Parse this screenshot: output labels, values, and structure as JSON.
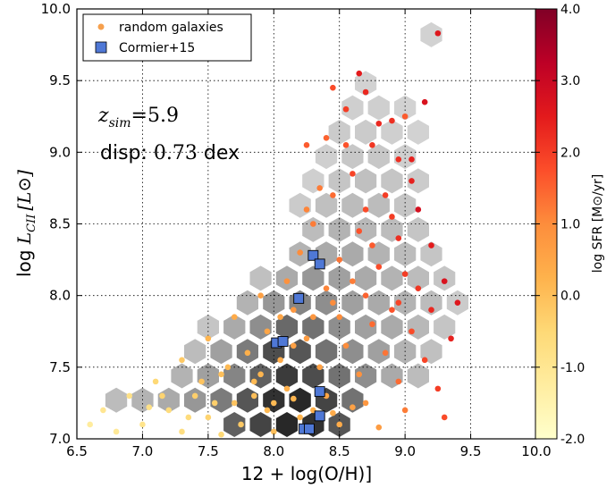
{
  "chart_data": {
    "type": "scatter",
    "title": "",
    "xlabel": "12 + log(O/H)]",
    "ylabel_prefix": "log ",
    "ylabel_math": "L",
    "ylabel_sub": "CII",
    "ylabel_unit": "[L⊙]",
    "xlim": [
      6.5,
      10.0
    ],
    "ylim": [
      7.0,
      10.0
    ],
    "xticks": [
      "6.5",
      "7.0",
      "7.5",
      "8.0",
      "8.5",
      "9.0",
      "9.5",
      "10.0"
    ],
    "yticks": [
      "7.0",
      "7.5",
      "8.0",
      "8.5",
      "9.0",
      "9.5",
      "10.0"
    ],
    "grid": true,
    "legend": {
      "placement": "top-left",
      "entries": [
        {
          "label": "random galaxies",
          "marker": "circle",
          "color": "#f6a04d"
        },
        {
          "label": "Cormier+15",
          "marker": "square",
          "color": "#4f78d6"
        }
      ]
    },
    "annotations": {
      "z_label": "z",
      "z_sub": "sim",
      "z_value": "=5.9",
      "disp_prefix": "disp: ",
      "disp_value": "0.73",
      "disp_suffix": " dex"
    },
    "colorbar": {
      "label": "log SFR [M⊙/yr]",
      "range": [
        -2.0,
        4.0
      ],
      "ticks": [
        "4.0",
        "3.0",
        "2.0",
        "1.0",
        "0.0",
        "-1.0",
        "-2.0"
      ],
      "colors": [
        "#ffffcc",
        "#ffeda0",
        "#fed976",
        "#feb24c",
        "#fd8d3c",
        "#fc4e2a",
        "#e31a1c",
        "#bd0026",
        "#800026"
      ]
    },
    "series": [
      {
        "name": "Cormier+15",
        "x": [
          8.3,
          8.35,
          8.19,
          8.02,
          8.07,
          8.35,
          8.35,
          8.23,
          8.27
        ],
        "y": [
          8.28,
          8.22,
          7.98,
          7.67,
          7.68,
          7.33,
          7.16,
          7.07,
          7.07
        ]
      },
      {
        "name": "random galaxies",
        "points": [
          [
            9.25,
            9.83,
            2.6
          ],
          [
            8.7,
            9.42,
            2.3
          ],
          [
            8.55,
            9.3,
            2.0
          ],
          [
            8.9,
            9.22,
            2.2
          ],
          [
            9.0,
            9.25,
            1.6
          ],
          [
            8.4,
            9.1,
            1.5
          ],
          [
            8.75,
            9.05,
            2.1
          ],
          [
            9.05,
            8.95,
            2.4
          ],
          [
            8.6,
            8.85,
            1.9
          ],
          [
            8.45,
            8.7,
            1.4
          ],
          [
            8.85,
            8.7,
            2.0
          ],
          [
            9.1,
            8.6,
            2.8
          ],
          [
            8.3,
            8.5,
            1.2
          ],
          [
            8.65,
            8.45,
            1.7
          ],
          [
            8.95,
            8.4,
            2.2
          ],
          [
            9.2,
            8.35,
            2.5
          ],
          [
            8.2,
            8.3,
            1.0
          ],
          [
            8.5,
            8.25,
            1.3
          ],
          [
            8.8,
            8.2,
            1.8
          ],
          [
            9.0,
            8.15,
            2.0
          ],
          [
            9.3,
            8.1,
            2.7
          ],
          [
            8.1,
            8.1,
            0.9
          ],
          [
            8.4,
            8.05,
            1.1
          ],
          [
            8.7,
            8.0,
            1.5
          ],
          [
            8.95,
            7.95,
            1.9
          ],
          [
            9.2,
            7.9,
            2.3
          ],
          [
            7.9,
            8.0,
            0.6
          ],
          [
            8.15,
            7.9,
            0.8
          ],
          [
            8.5,
            7.85,
            1.0
          ],
          [
            8.75,
            7.8,
            1.4
          ],
          [
            9.05,
            7.75,
            1.8
          ],
          [
            9.35,
            7.7,
            2.4
          ],
          [
            7.7,
            7.85,
            0.4
          ],
          [
            7.95,
            7.75,
            0.5
          ],
          [
            8.25,
            7.7,
            0.7
          ],
          [
            8.55,
            7.65,
            1.0
          ],
          [
            8.85,
            7.6,
            1.3
          ],
          [
            9.15,
            7.55,
            1.9
          ],
          [
            7.5,
            7.7,
            0.2
          ],
          [
            7.8,
            7.6,
            0.3
          ],
          [
            8.05,
            7.55,
            0.4
          ],
          [
            8.35,
            7.5,
            0.6
          ],
          [
            8.65,
            7.45,
            0.9
          ],
          [
            8.95,
            7.4,
            1.4
          ],
          [
            9.25,
            7.35,
            2.0
          ],
          [
            7.3,
            7.55,
            -0.2
          ],
          [
            7.6,
            7.45,
            0.0
          ],
          [
            7.85,
            7.4,
            0.1
          ],
          [
            8.1,
            7.35,
            0.3
          ],
          [
            8.4,
            7.3,
            0.5
          ],
          [
            8.7,
            7.25,
            0.8
          ],
          [
            9.0,
            7.2,
            1.2
          ],
          [
            9.3,
            7.15,
            1.8
          ],
          [
            7.1,
            7.4,
            -0.5
          ],
          [
            7.4,
            7.3,
            -0.3
          ],
          [
            7.7,
            7.25,
            -0.1
          ],
          [
            7.95,
            7.2,
            0.1
          ],
          [
            8.2,
            7.15,
            0.2
          ],
          [
            8.5,
            7.1,
            0.4
          ],
          [
            8.8,
            7.08,
            0.7
          ],
          [
            6.9,
            7.3,
            -0.8
          ],
          [
            7.2,
            7.2,
            -0.6
          ],
          [
            7.5,
            7.15,
            -0.4
          ],
          [
            7.75,
            7.1,
            -0.2
          ],
          [
            8.0,
            7.05,
            0.0
          ],
          [
            6.7,
            7.2,
            -1.0
          ],
          [
            7.0,
            7.1,
            -0.9
          ],
          [
            7.3,
            7.05,
            -0.7
          ],
          [
            7.6,
            7.03,
            -0.5
          ],
          [
            6.6,
            7.1,
            -1.2
          ],
          [
            6.8,
            7.05,
            -1.1
          ],
          [
            7.15,
            7.3,
            -0.4
          ],
          [
            7.45,
            7.4,
            -0.1
          ],
          [
            7.65,
            7.5,
            0.1
          ],
          [
            7.9,
            7.45,
            0.2
          ],
          [
            8.15,
            7.65,
            0.6
          ],
          [
            8.3,
            7.85,
            0.8
          ],
          [
            8.45,
            7.95,
            1.0
          ],
          [
            8.6,
            8.1,
            1.2
          ],
          [
            8.75,
            8.35,
            1.6
          ],
          [
            8.9,
            8.55,
            2.0
          ],
          [
            9.05,
            8.8,
            2.4
          ],
          [
            8.55,
            9.05,
            1.7
          ],
          [
            8.35,
            8.75,
            1.2
          ],
          [
            8.25,
            8.6,
            1.1
          ],
          [
            8.05,
            7.85,
            0.5
          ],
          [
            7.85,
            7.3,
            0.0
          ],
          [
            8.0,
            7.25,
            0.1
          ],
          [
            8.15,
            7.28,
            0.2
          ],
          [
            8.3,
            7.2,
            0.3
          ],
          [
            8.45,
            7.18,
            0.4
          ],
          [
            8.6,
            7.22,
            0.6
          ],
          [
            7.55,
            7.25,
            -0.3
          ],
          [
            7.35,
            7.15,
            -0.6
          ],
          [
            7.05,
            7.22,
            -0.8
          ],
          [
            8.9,
            7.9,
            1.7
          ],
          [
            9.1,
            8.05,
            2.1
          ],
          [
            9.4,
            7.95,
            2.6
          ],
          [
            8.8,
            9.2,
            2.3
          ],
          [
            8.65,
            9.55,
            2.5
          ],
          [
            8.45,
            9.45,
            1.8
          ],
          [
            8.25,
            9.05,
            1.6
          ],
          [
            9.15,
            9.35,
            2.7
          ],
          [
            8.95,
            8.95,
            2.2
          ],
          [
            8.7,
            8.6,
            1.8
          ]
        ]
      }
    ],
    "hexbins": [
      [
        8.1,
        7.1,
        1.0
      ],
      [
        8.3,
        7.1,
        0.95
      ],
      [
        7.9,
        7.1,
        0.85
      ],
      [
        8.5,
        7.1,
        0.75
      ],
      [
        7.7,
        7.1,
        0.7
      ],
      [
        8.0,
        7.27,
        0.95
      ],
      [
        8.2,
        7.27,
        1.0
      ],
      [
        8.4,
        7.27,
        0.85
      ],
      [
        7.8,
        7.27,
        0.75
      ],
      [
        8.6,
        7.27,
        0.6
      ],
      [
        7.6,
        7.27,
        0.55
      ],
      [
        7.4,
        7.27,
        0.4
      ],
      [
        7.2,
        7.27,
        0.3
      ],
      [
        7.0,
        7.27,
        0.25
      ],
      [
        6.8,
        7.27,
        0.2
      ],
      [
        8.1,
        7.44,
        0.9
      ],
      [
        8.3,
        7.44,
        0.8
      ],
      [
        7.9,
        7.44,
        0.7
      ],
      [
        8.5,
        7.44,
        0.6
      ],
      [
        7.7,
        7.44,
        0.5
      ],
      [
        8.7,
        7.44,
        0.45
      ],
      [
        7.5,
        7.44,
        0.35
      ],
      [
        8.9,
        7.44,
        0.3
      ],
      [
        7.3,
        7.44,
        0.25
      ],
      [
        9.1,
        7.44,
        0.2
      ],
      [
        8.0,
        7.61,
        0.8
      ],
      [
        8.2,
        7.61,
        0.75
      ],
      [
        8.4,
        7.61,
        0.6
      ],
      [
        7.8,
        7.61,
        0.55
      ],
      [
        8.6,
        7.61,
        0.45
      ],
      [
        7.6,
        7.61,
        0.35
      ],
      [
        8.8,
        7.61,
        0.35
      ],
      [
        9.0,
        7.61,
        0.25
      ],
      [
        7.4,
        7.61,
        0.2
      ],
      [
        9.2,
        7.61,
        0.18
      ],
      [
        8.1,
        7.78,
        0.65
      ],
      [
        8.3,
        7.78,
        0.6
      ],
      [
        7.9,
        7.78,
        0.45
      ],
      [
        8.5,
        7.78,
        0.45
      ],
      [
        8.7,
        7.78,
        0.35
      ],
      [
        7.7,
        7.78,
        0.3
      ],
      [
        8.9,
        7.78,
        0.3
      ],
      [
        9.1,
        7.78,
        0.22
      ],
      [
        7.5,
        7.78,
        0.15
      ],
      [
        9.3,
        7.78,
        0.15
      ],
      [
        8.2,
        7.95,
        0.5
      ],
      [
        8.4,
        7.95,
        0.45
      ],
      [
        8.0,
        7.95,
        0.4
      ],
      [
        8.6,
        7.95,
        0.35
      ],
      [
        8.8,
        7.95,
        0.3
      ],
      [
        7.8,
        7.95,
        0.25
      ],
      [
        9.0,
        7.95,
        0.25
      ],
      [
        9.2,
        7.95,
        0.2
      ],
      [
        9.4,
        7.95,
        0.12
      ],
      [
        8.3,
        8.12,
        0.4
      ],
      [
        8.5,
        8.12,
        0.35
      ],
      [
        8.1,
        8.12,
        0.3
      ],
      [
        8.7,
        8.12,
        0.3
      ],
      [
        8.9,
        8.12,
        0.25
      ],
      [
        9.1,
        8.12,
        0.2
      ],
      [
        7.9,
        8.12,
        0.18
      ],
      [
        9.3,
        8.12,
        0.15
      ],
      [
        8.4,
        8.29,
        0.3
      ],
      [
        8.6,
        8.29,
        0.3
      ],
      [
        8.2,
        8.29,
        0.25
      ],
      [
        8.8,
        8.29,
        0.25
      ],
      [
        9.0,
        8.29,
        0.2
      ],
      [
        9.2,
        8.29,
        0.15
      ],
      [
        8.5,
        8.46,
        0.25
      ],
      [
        8.3,
        8.46,
        0.2
      ],
      [
        8.7,
        8.46,
        0.22
      ],
      [
        8.9,
        8.46,
        0.2
      ],
      [
        9.1,
        8.46,
        0.15
      ],
      [
        8.6,
        8.63,
        0.2
      ],
      [
        8.4,
        8.63,
        0.18
      ],
      [
        8.8,
        8.63,
        0.2
      ],
      [
        9.0,
        8.63,
        0.15
      ],
      [
        8.2,
        8.63,
        0.12
      ],
      [
        8.5,
        8.8,
        0.15
      ],
      [
        8.7,
        8.8,
        0.18
      ],
      [
        8.9,
        8.8,
        0.15
      ],
      [
        9.1,
        8.8,
        0.12
      ],
      [
        8.3,
        8.8,
        0.1
      ],
      [
        8.6,
        8.97,
        0.14
      ],
      [
        8.8,
        8.97,
        0.14
      ],
      [
        9.0,
        8.97,
        0.1
      ],
      [
        8.4,
        8.97,
        0.1
      ],
      [
        8.5,
        9.14,
        0.12
      ],
      [
        8.7,
        9.14,
        0.12
      ],
      [
        8.9,
        9.14,
        0.1
      ],
      [
        9.1,
        9.14,
        0.08
      ],
      [
        8.6,
        9.31,
        0.1
      ],
      [
        8.8,
        9.31,
        0.1
      ],
      [
        9.0,
        9.31,
        0.08
      ],
      [
        8.7,
        9.48,
        0.08
      ],
      [
        9.2,
        9.82,
        0.08
      ]
    ]
  }
}
